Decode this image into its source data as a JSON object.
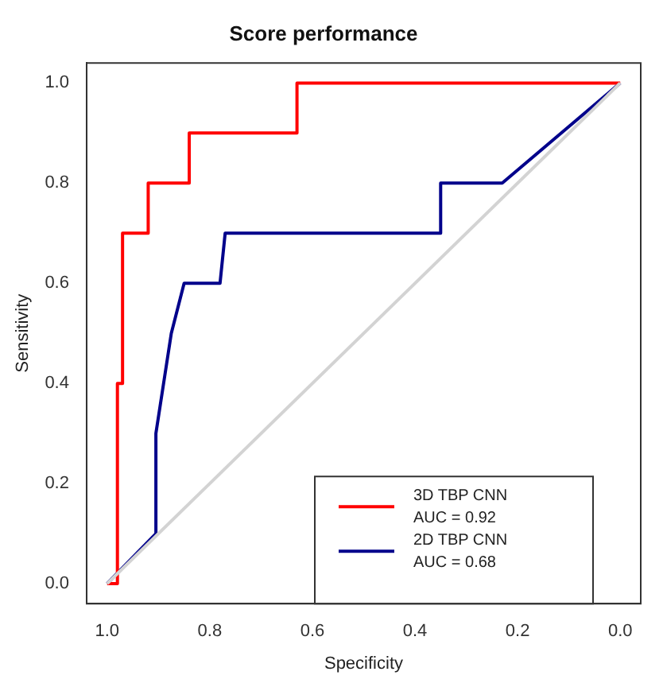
{
  "chart_data": {
    "type": "line",
    "title": "Score performance",
    "xlabel": "Specificity",
    "ylabel": "Sensitivity",
    "xlim": [
      1.04,
      -0.04
    ],
    "ylim": [
      -0.04,
      1.04
    ],
    "xticks": [
      {
        "value": 1,
        "label": "1.0"
      },
      {
        "value": 0.8,
        "label": "0.8"
      },
      {
        "value": 0.6,
        "label": "0.6"
      },
      {
        "value": 0.4,
        "label": "0.4"
      },
      {
        "value": 0.2,
        "label": "0.2"
      },
      {
        "value": 0,
        "label": "0.0"
      }
    ],
    "yticks": [
      {
        "value": 0,
        "label": "0.0"
      },
      {
        "value": 0.2,
        "label": "0.2"
      },
      {
        "value": 0.4,
        "label": "0.4"
      },
      {
        "value": 0.6,
        "label": "0.6"
      },
      {
        "value": 0.8,
        "label": "0.8"
      },
      {
        "value": 1,
        "label": "1.0"
      }
    ],
    "grid": false,
    "legend": "bottom right",
    "marker": "none",
    "series": [
      {
        "color": "#d3d3d3",
        "x": [
          1,
          0
        ],
        "values": [
          0,
          1
        ]
      },
      {
        "name": "3D TBP CNN\nAUC = 0.92",
        "color": "#ff0000",
        "x": [
          1,
          0.98,
          0.98,
          0.97,
          0.97,
          0.92,
          0.92,
          0.84,
          0.84,
          0.63,
          0.63,
          0
        ],
        "values": [
          0,
          0,
          0.4,
          0.4,
          0.7,
          0.7,
          0.8,
          0.8,
          0.9,
          0.9,
          1,
          1
        ]
      },
      {
        "name": "2D TBP CNN\nAUC = 0.68",
        "color": "#00008b",
        "x": [
          1,
          0.905,
          0.905,
          0.875,
          0.85,
          0.78,
          0.77,
          0.35,
          0.35,
          0.23,
          0
        ],
        "values": [
          0,
          0.1,
          0.3,
          0.5,
          0.6,
          0.6,
          0.7,
          0.7,
          0.8,
          0.8,
          1
        ]
      }
    ]
  }
}
